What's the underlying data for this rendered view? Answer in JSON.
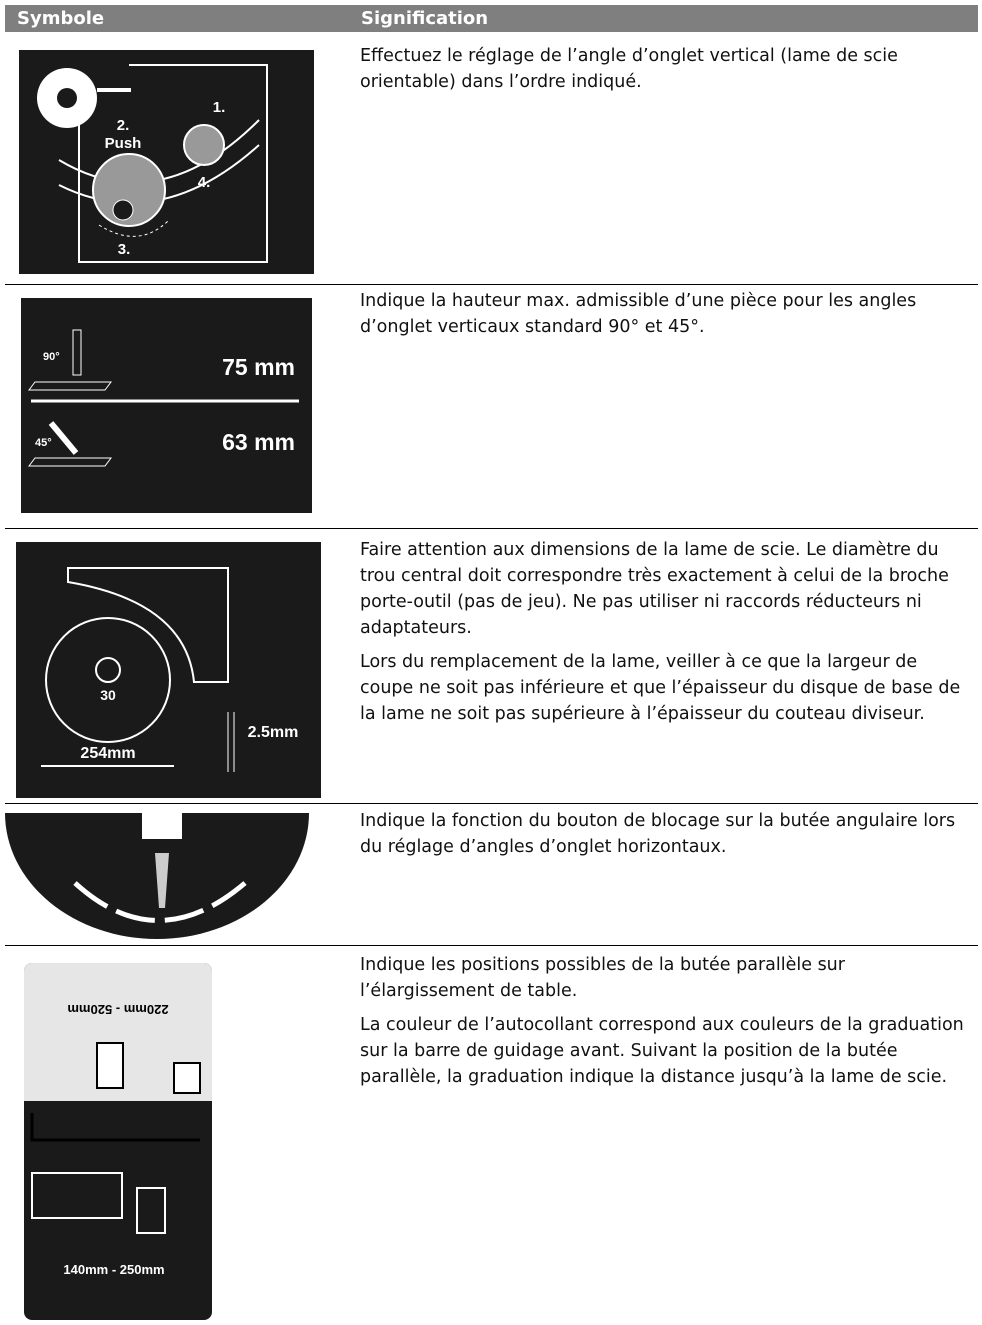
{
  "table": {
    "header": [
      "Symbole",
      "Signification"
    ],
    "rows": [
      {
        "symbol_labels": [
          "1.",
          "2.",
          "Push",
          "3.",
          "4."
        ],
        "text": [
          "Effectuez le réglage de l’angle d’onglet vertical (lame de scie orientable) dans l’ordre indiqué."
        ]
      },
      {
        "symbol_labels": [
          "90°",
          "75 mm",
          "45°",
          "63 mm"
        ],
        "text": [
          "Indique la hauteur max. admissible d’une pièce pour les angles d’onglet verticaux standard 90° et 45°."
        ]
      },
      {
        "symbol_labels": [
          "30",
          "254mm",
          "2.5mm"
        ],
        "text": [
          "Faire attention aux dimensions de la lame de scie. Le diamètre du trou central doit correspondre très exactement à celui de la broche porte-outil (pas de jeu). Ne pas utiliser ni raccords réducteurs ni adaptateurs.",
          "Lors du remplacement de la lame, veiller à ce que la largeur de coupe ne soit pas inférieure et que l’épaisseur du disque de base de la lame ne soit pas supérieure à l’épaisseur du couteau diviseur."
        ]
      },
      {
        "symbol_labels": [],
        "text": [
          "Indique la fonction du bouton de blocage sur la butée angulaire lors du réglage d’angles d’onglet horizontaux."
        ]
      },
      {
        "symbol_labels": [
          "220mm - 520mm",
          "140mm - 250mm"
        ],
        "text": [
          "Indique les positions possibles de la butée parallèle sur l’élargissement de table.",
          "La couleur de l’autocollant correspond aux couleurs de la graduation sur la barre de guidage avant. Suivant la position de la butée parallèle, la graduation indique la distance jusqu’à la lame de scie."
        ]
      }
    ]
  }
}
